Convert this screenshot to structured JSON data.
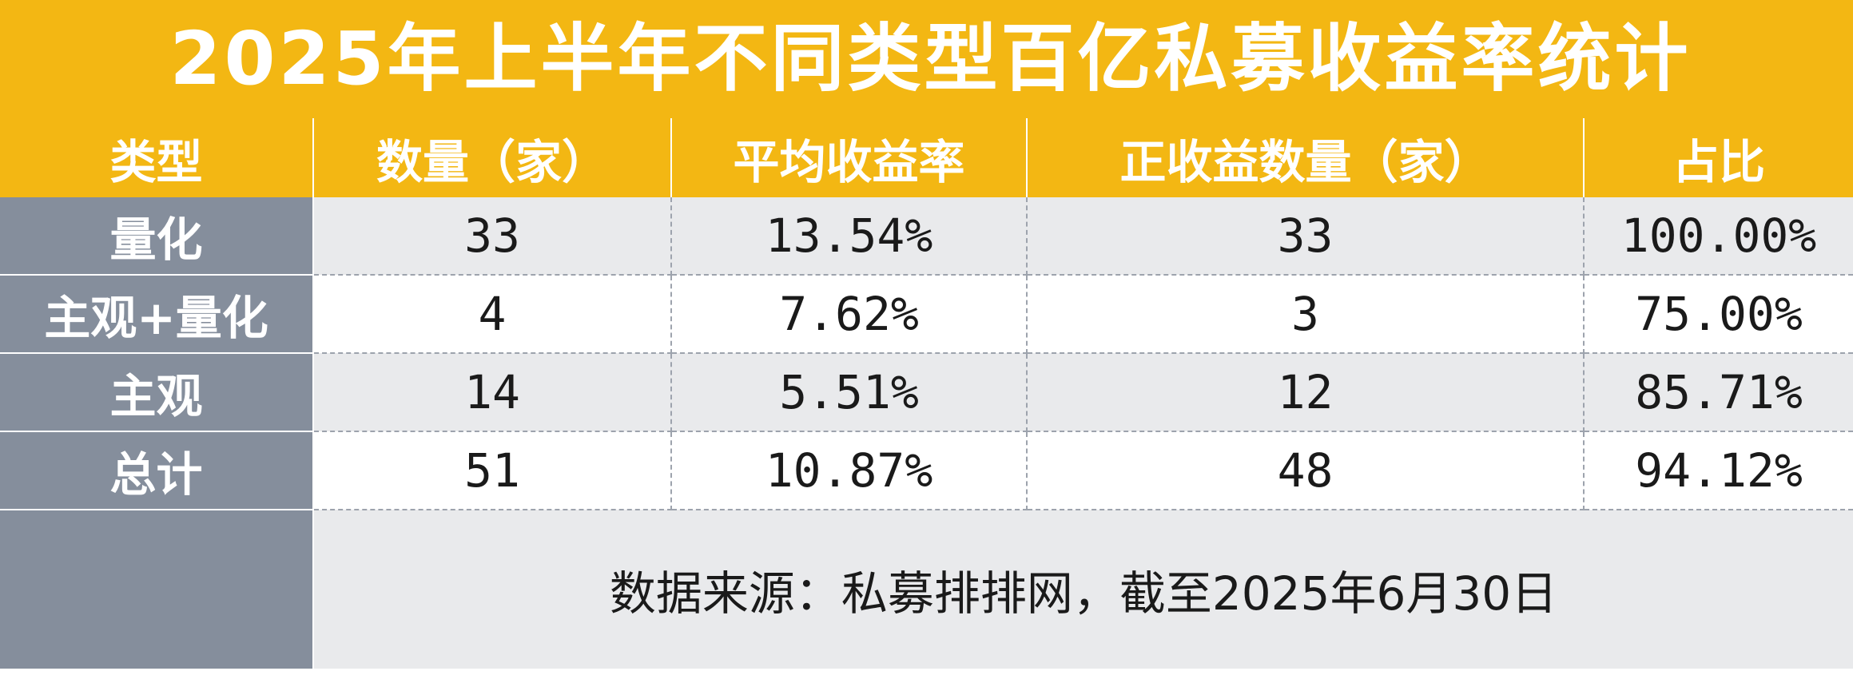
{
  "title": "2025年上半年不同类型百亿私募收益率统计",
  "headers": [
    "类型",
    "数量（家）",
    "平均收益率",
    "正收益数量（家）",
    "占比"
  ],
  "rows": [
    {
      "type": "量化",
      "count": "33",
      "avg_return": "13.54%",
      "positive_count": "33",
      "ratio": "100.00%"
    },
    {
      "type": "主观+量化",
      "count": "4",
      "avg_return": "7.62%",
      "positive_count": "3",
      "ratio": "75.00%"
    },
    {
      "type": "主观",
      "count": "14",
      "avg_return": "5.51%",
      "positive_count": "12",
      "ratio": "85.71%"
    },
    {
      "type": "总计",
      "count": "51",
      "avg_return": "10.87%",
      "positive_count": "48",
      "ratio": "94.12%"
    }
  ],
  "source_note": "数据来源：私募排排网，截至2025年6月30日",
  "colors": {
    "header_bg": "#f3b713",
    "row_head_bg": "#858e9c",
    "shaded_row": "#e9eaec"
  }
}
